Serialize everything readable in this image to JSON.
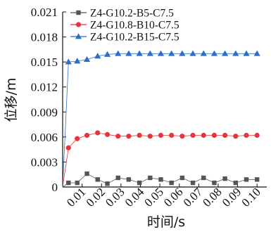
{
  "chart_data": {
    "type": "line",
    "xlabel": "时间/s",
    "ylabel": "位移/m",
    "xlim": [
      0,
      0.105
    ],
    "ylim": [
      0,
      0.021
    ],
    "x_ticks": [
      "0.01",
      "0.02",
      "0.03",
      "0.04",
      "0.05",
      "0.06",
      "0.07",
      "0.08",
      "0.09",
      "0.10"
    ],
    "x_tick_values": [
      0.01,
      0.02,
      0.03,
      0.04,
      0.05,
      0.06,
      0.07,
      0.08,
      0.09,
      0.1
    ],
    "y_ticks": [
      "0",
      "0.003",
      "0.006",
      "0.009",
      "0.012",
      "0.015",
      "0.018",
      "0.021"
    ],
    "y_tick_values": [
      0,
      0.003,
      0.006,
      0.009,
      0.012,
      0.015,
      0.018,
      0.021
    ],
    "grid": false,
    "legend_position": "top-left",
    "x": [
      0,
      0.003,
      0.0075,
      0.0125,
      0.018,
      0.023,
      0.0285,
      0.034,
      0.0395,
      0.045,
      0.0505,
      0.056,
      0.0615,
      0.067,
      0.0725,
      0.078,
      0.0835,
      0.089,
      0.0945,
      0.1
    ],
    "series": [
      {
        "name": "Z4-G10.2-B5-C7.5",
        "color": "#555555",
        "marker": "square",
        "values": [
          0,
          0.0005,
          0.0005,
          0.0016,
          0.0009,
          0.0004,
          0.0011,
          0.0009,
          0.0005,
          0.0011,
          0.0009,
          0.0005,
          0.0011,
          0.0005,
          0.0011,
          0.0005,
          0.001,
          0.0005,
          0.0009,
          0.0009
        ]
      },
      {
        "name": "Z4-G10.8-B10-C7.5",
        "color": "#e8333a",
        "marker": "circle",
        "values": [
          0,
          0.0047,
          0.0058,
          0.0062,
          0.0065,
          0.0063,
          0.0061,
          0.0061,
          0.0062,
          0.0061,
          0.0062,
          0.0062,
          0.0061,
          0.0062,
          0.0062,
          0.0062,
          0.0062,
          0.0061,
          0.0062,
          0.0062
        ]
      },
      {
        "name": "Z4-G10.2-B15-C7.5",
        "color": "#2e6ec4",
        "marker": "triangle",
        "values": [
          0,
          0.015,
          0.0151,
          0.0153,
          0.0157,
          0.0159,
          0.016,
          0.016,
          0.016,
          0.016,
          0.016,
          0.016,
          0.016,
          0.016,
          0.016,
          0.016,
          0.016,
          0.016,
          0.016,
          0.016
        ]
      }
    ]
  }
}
